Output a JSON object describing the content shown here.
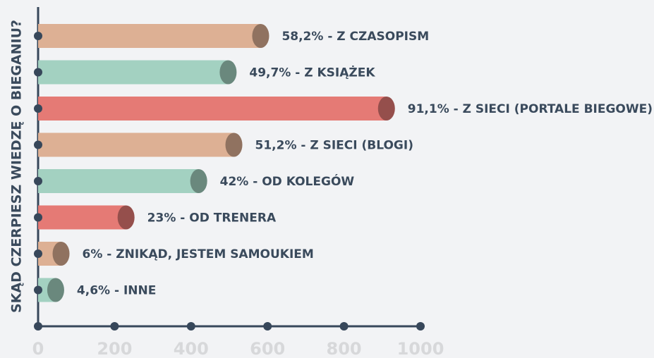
{
  "chart_data": {
    "type": "hbar",
    "ylabel": "SKĄD CZERPIESZ WIEDZĘ O BIEGANIU?",
    "categories": [
      "58,2% - Z CZASOPISM",
      "49,7% - Z KSIĄŻEK",
      "91,1% - Z SIECI (PORTALE BIEGOWE)",
      "51,2% - Z SIECI (BLOGI)",
      "42% - OD KOLEGÓW",
      "23% - OD TRENERA",
      "6% - ZNIKĄD, JESTEM SAMOUKIEM",
      "4,6% - INNE"
    ],
    "values": [
      582,
      497,
      911,
      512,
      420,
      230,
      60,
      46
    ],
    "colors": [
      "#ddb094",
      "#a3d1c1",
      "#e57a75",
      "#ddb094",
      "#a3d1c1",
      "#e57a75",
      "#ddb094",
      "#a3d1c1"
    ],
    "xlim": [
      0,
      1000
    ],
    "xticks": [
      0,
      200,
      400,
      600,
      800,
      1000
    ]
  }
}
